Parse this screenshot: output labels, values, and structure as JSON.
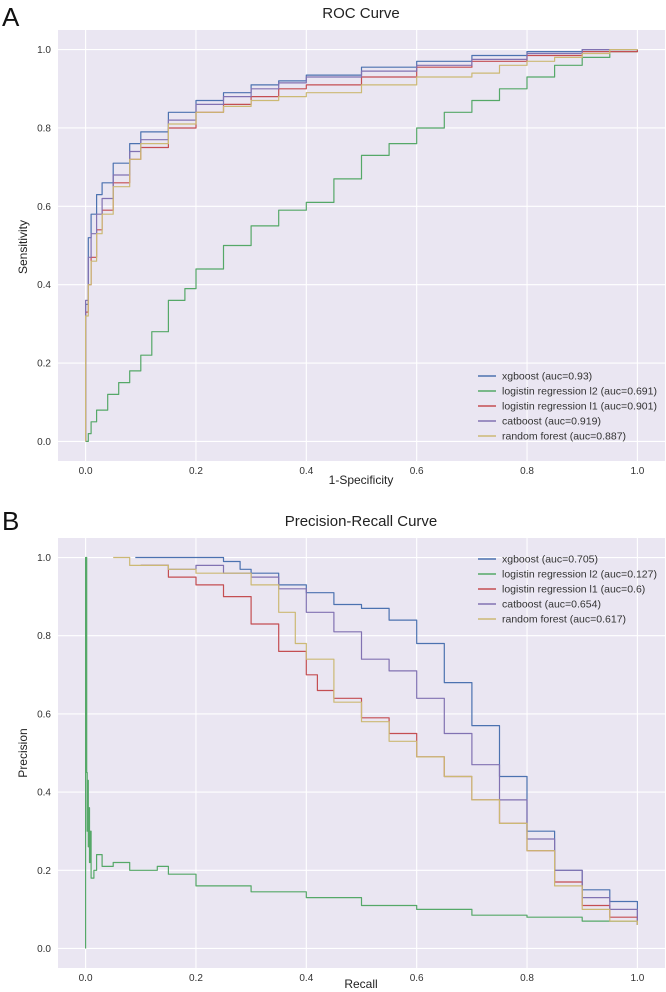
{
  "colors": {
    "xgboost": "#4c72b0",
    "lr_l2": "#55a868",
    "lr_l1": "#c44e52",
    "catboost": "#8172b2",
    "random_forest": "#ccb974",
    "background": "#eae6f2"
  },
  "chart_data": [
    {
      "panel": "A",
      "type": "line",
      "title": "ROC Curve",
      "xlabel": "1-Specificity",
      "ylabel": "Sensitivity",
      "xlim": [
        -0.05,
        1.05
      ],
      "ylim": [
        -0.05,
        1.05
      ],
      "xticks": [
        0.0,
        0.2,
        0.4,
        0.6,
        0.8,
        1.0
      ],
      "yticks": [
        0.0,
        0.2,
        0.4,
        0.6,
        0.8,
        1.0
      ],
      "xtick_labels": [
        "0.0",
        "0.2",
        "0.4",
        "0.6",
        "0.8",
        "1.0"
      ],
      "ytick_labels": [
        "0.0",
        "0.2",
        "0.4",
        "0.6",
        "0.8",
        "1.0"
      ],
      "legend_position": "bottom-right",
      "series": [
        {
          "name": "xgboost (auc=0.93)",
          "color_key": "xgboost",
          "x": [
            0,
            0,
            0.005,
            0.01,
            0.02,
            0.03,
            0.05,
            0.08,
            0.1,
            0.15,
            0.2,
            0.25,
            0.3,
            0.35,
            0.4,
            0.5,
            0.6,
            0.7,
            0.8,
            0.9,
            1.0
          ],
          "y": [
            0,
            0.35,
            0.52,
            0.58,
            0.63,
            0.66,
            0.71,
            0.76,
            0.79,
            0.84,
            0.87,
            0.89,
            0.91,
            0.92,
            0.935,
            0.955,
            0.97,
            0.985,
            0.995,
            1.0,
            1.0
          ]
        },
        {
          "name": "logistin regression l2 (auc=0.691)",
          "color_key": "lr_l2",
          "x": [
            0,
            0.005,
            0.01,
            0.02,
            0.04,
            0.06,
            0.08,
            0.1,
            0.12,
            0.15,
            0.18,
            0.2,
            0.25,
            0.3,
            0.35,
            0.4,
            0.45,
            0.5,
            0.55,
            0.6,
            0.65,
            0.7,
            0.75,
            0.8,
            0.85,
            0.9,
            0.95,
            1.0
          ],
          "y": [
            0,
            0.02,
            0.05,
            0.08,
            0.12,
            0.15,
            0.18,
            0.22,
            0.28,
            0.36,
            0.39,
            0.44,
            0.5,
            0.55,
            0.59,
            0.61,
            0.67,
            0.73,
            0.76,
            0.8,
            0.84,
            0.87,
            0.9,
            0.93,
            0.96,
            0.98,
            0.995,
            1.0
          ]
        },
        {
          "name": "logistin regression l1 (auc=0.901)",
          "color_key": "lr_l1",
          "x": [
            0,
            0,
            0.005,
            0.01,
            0.02,
            0.03,
            0.05,
            0.08,
            0.1,
            0.15,
            0.2,
            0.25,
            0.3,
            0.35,
            0.4,
            0.5,
            0.6,
            0.7,
            0.8,
            0.9,
            1.0
          ],
          "y": [
            0,
            0.33,
            0.4,
            0.47,
            0.54,
            0.59,
            0.66,
            0.72,
            0.75,
            0.8,
            0.84,
            0.86,
            0.88,
            0.9,
            0.91,
            0.93,
            0.955,
            0.97,
            0.985,
            0.995,
            1.0
          ]
        },
        {
          "name": "catboost (auc=0.919)",
          "color_key": "catboost",
          "x": [
            0,
            0,
            0.005,
            0.01,
            0.02,
            0.03,
            0.05,
            0.08,
            0.1,
            0.15,
            0.2,
            0.25,
            0.3,
            0.35,
            0.4,
            0.5,
            0.6,
            0.7,
            0.8,
            0.9,
            1.0
          ],
          "y": [
            0,
            0.36,
            0.47,
            0.53,
            0.58,
            0.62,
            0.68,
            0.74,
            0.77,
            0.82,
            0.86,
            0.88,
            0.9,
            0.915,
            0.93,
            0.945,
            0.96,
            0.975,
            0.99,
            1.0,
            1.0
          ]
        },
        {
          "name": "random forest (auc=0.887)",
          "color_key": "random_forest",
          "x": [
            0,
            0,
            0.005,
            0.01,
            0.02,
            0.03,
            0.05,
            0.08,
            0.1,
            0.15,
            0.2,
            0.25,
            0.3,
            0.35,
            0.4,
            0.5,
            0.6,
            0.7,
            0.75,
            0.8,
            0.85,
            0.9,
            0.95,
            1.0
          ],
          "y": [
            0,
            0.32,
            0.4,
            0.46,
            0.53,
            0.58,
            0.65,
            0.72,
            0.76,
            0.81,
            0.84,
            0.855,
            0.87,
            0.88,
            0.89,
            0.91,
            0.93,
            0.94,
            0.96,
            0.97,
            0.98,
            0.99,
            1.0,
            1.0
          ]
        }
      ]
    },
    {
      "panel": "B",
      "type": "line",
      "title": "Precision-Recall Curve",
      "xlabel": "Recall",
      "ylabel": "Precision",
      "xlim": [
        -0.05,
        1.05
      ],
      "ylim": [
        -0.05,
        1.05
      ],
      "xticks": [
        0.0,
        0.2,
        0.4,
        0.6,
        0.8,
        1.0
      ],
      "yticks": [
        0.0,
        0.2,
        0.4,
        0.6,
        0.8,
        1.0
      ],
      "xtick_labels": [
        "0.0",
        "0.2",
        "0.4",
        "0.6",
        "0.8",
        "1.0"
      ],
      "ytick_labels": [
        "0.0",
        "0.2",
        "0.4",
        "0.6",
        "0.8",
        "1.0"
      ],
      "legend_position": "top-right",
      "series": [
        {
          "name": "xgboost (auc=0.705)",
          "color_key": "xgboost",
          "x": [
            0.09,
            0.15,
            0.2,
            0.25,
            0.28,
            0.3,
            0.35,
            0.4,
            0.45,
            0.5,
            0.55,
            0.6,
            0.65,
            0.7,
            0.75,
            0.8,
            0.85,
            0.9,
            0.95,
            1.0
          ],
          "y": [
            1.0,
            1.0,
            1.0,
            0.99,
            0.97,
            0.96,
            0.93,
            0.91,
            0.88,
            0.87,
            0.84,
            0.78,
            0.68,
            0.57,
            0.44,
            0.3,
            0.2,
            0.15,
            0.12,
            0.07
          ]
        },
        {
          "name": "logistin regression l2 (auc=0.127)",
          "color_key": "lr_l2",
          "x": [
            0.0,
            0.0,
            0.002,
            0.003,
            0.004,
            0.005,
            0.006,
            0.007,
            0.008,
            0.01,
            0.015,
            0.02,
            0.03,
            0.05,
            0.08,
            0.1,
            0.13,
            0.15,
            0.2,
            0.3,
            0.4,
            0.5,
            0.6,
            0.7,
            0.8,
            0.9,
            1.0
          ],
          "y": [
            0.0,
            1.0,
            0.45,
            0.3,
            0.43,
            0.26,
            0.36,
            0.22,
            0.3,
            0.18,
            0.2,
            0.24,
            0.21,
            0.22,
            0.2,
            0.2,
            0.21,
            0.19,
            0.16,
            0.145,
            0.13,
            0.11,
            0.1,
            0.085,
            0.08,
            0.07,
            0.06
          ]
        },
        {
          "name": "logistin regression l1 (auc=0.6)",
          "color_key": "lr_l1",
          "x": [
            0.1,
            0.15,
            0.2,
            0.25,
            0.3,
            0.35,
            0.4,
            0.42,
            0.45,
            0.5,
            0.55,
            0.6,
            0.65,
            0.7,
            0.75,
            0.8,
            0.85,
            0.9,
            0.95,
            1.0
          ],
          "y": [
            0.98,
            0.95,
            0.93,
            0.9,
            0.83,
            0.76,
            0.7,
            0.66,
            0.64,
            0.59,
            0.55,
            0.49,
            0.44,
            0.38,
            0.32,
            0.25,
            0.17,
            0.11,
            0.08,
            0.06
          ]
        },
        {
          "name": "catboost (auc=0.654)",
          "color_key": "catboost",
          "x": [
            0.1,
            0.15,
            0.2,
            0.25,
            0.3,
            0.35,
            0.4,
            0.45,
            0.5,
            0.55,
            0.6,
            0.65,
            0.7,
            0.75,
            0.8,
            0.85,
            0.9,
            0.95,
            1.0
          ],
          "y": [
            0.98,
            0.97,
            0.98,
            0.96,
            0.95,
            0.92,
            0.86,
            0.81,
            0.74,
            0.71,
            0.64,
            0.55,
            0.47,
            0.38,
            0.28,
            0.2,
            0.13,
            0.1,
            0.06
          ]
        },
        {
          "name": "random forest (auc=0.617)",
          "color_key": "random_forest",
          "x": [
            0.05,
            0.08,
            0.1,
            0.15,
            0.2,
            0.25,
            0.3,
            0.35,
            0.38,
            0.4,
            0.45,
            0.5,
            0.55,
            0.6,
            0.65,
            0.7,
            0.75,
            0.8,
            0.85,
            0.9,
            0.95,
            1.0
          ],
          "y": [
            1.0,
            0.98,
            0.98,
            0.97,
            0.96,
            0.96,
            0.93,
            0.86,
            0.78,
            0.74,
            0.63,
            0.58,
            0.53,
            0.49,
            0.44,
            0.38,
            0.32,
            0.25,
            0.16,
            0.1,
            0.07,
            0.06
          ]
        }
      ]
    }
  ]
}
